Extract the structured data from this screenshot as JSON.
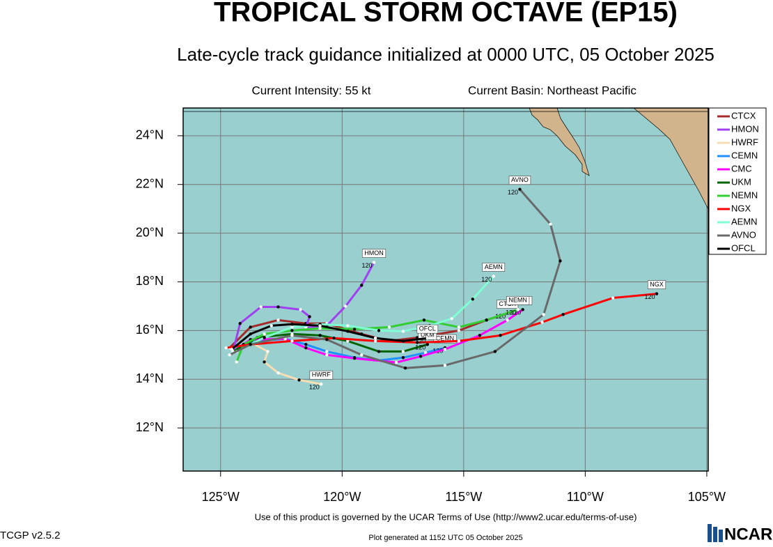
{
  "chart_data": {
    "type": "track-map",
    "title": "TROPICAL STORM OCTAVE (EP15)",
    "subtitle": "Late-cycle track guidance initialized at 0000 UTC, 05 October 2025",
    "intensity": "Current Intensity: 55 kt",
    "basin": "Current Basin: Northeast Pacific",
    "terms": "Use of this product is governed by the UCAR Terms of Use (http://www2.ucar.edu/terms-of-use)",
    "version": "TCGP v2.5.2",
    "generated": "Plot generated at 1152 UTC   05 October 2025",
    "logo": "NCAR",
    "xlim": [
      -126.54,
      -104.94
    ],
    "ylim": [
      10.23,
      25.14
    ],
    "xticks": [
      {
        "value": -125,
        "label": "125°W"
      },
      {
        "value": -120,
        "label": "120°W"
      },
      {
        "value": -115,
        "label": "115°W"
      },
      {
        "value": -110,
        "label": "110°W"
      },
      {
        "value": -105,
        "label": "105°W"
      }
    ],
    "yticks": [
      {
        "value": 12,
        "label": "12°N"
      },
      {
        "value": 14,
        "label": "14°N"
      },
      {
        "value": 16,
        "label": "16°N"
      },
      {
        "value": 18,
        "label": "18°N"
      },
      {
        "value": 20,
        "label": "20°N"
      },
      {
        "value": 22,
        "label": "22°N"
      },
      {
        "value": 24,
        "label": "24°N"
      }
    ],
    "grid": true,
    "legend": "right",
    "series": [
      {
        "name": "CTCX",
        "color": "#a52a2a",
        "end_hour": 120,
        "lon": [
          -124.63,
          -123.77,
          -122.63,
          -121.49,
          -120.63,
          -119.2,
          -118.06,
          -116.91,
          -115.2,
          -114.06,
          -113.2
        ],
        "lat": [
          15.29,
          16.14,
          16.43,
          16.29,
          16.29,
          15.86,
          15.57,
          15.71,
          16.0,
          16.43,
          16.71
        ]
      },
      {
        "name": "HMON",
        "color": "#a040f0",
        "end_hour": 120,
        "lon": [
          -124.49,
          -124.2,
          -123.34,
          -122.63,
          -121.71,
          -121.34,
          -121.49,
          -120.63,
          -119.86,
          -119.2,
          -118.69
        ],
        "lat": [
          15.14,
          16.29,
          16.97,
          16.97,
          16.86,
          16.57,
          16.14,
          16.2,
          17.0,
          17.86,
          18.8
        ]
      },
      {
        "name": "HWRF",
        "color": "#f5deb3",
        "end_hour": 120,
        "lon": [
          -124.49,
          -123.71,
          -123.06,
          -123.2,
          -122.63,
          -121.77,
          -120.86
        ],
        "lat": [
          15.14,
          15.49,
          15.14,
          14.71,
          14.26,
          13.97,
          13.8
        ]
      },
      {
        "name": "CEMN",
        "color": "#1e90ff",
        "end_hour": 120,
        "lon": [
          -124.49,
          -123.49,
          -122.34,
          -121.49,
          -120.63,
          -119.49,
          -118.49,
          -117.49,
          -116.57,
          -115.77
        ],
        "lat": [
          15.14,
          15.57,
          15.66,
          15.43,
          15.14,
          14.89,
          14.77,
          14.89,
          15.09,
          15.29
        ]
      },
      {
        "name": "CMC",
        "color": "#ff00ff",
        "end_hour": 120,
        "lon": [
          -124.49,
          -123.77,
          -122.34,
          -121.49,
          -120.63,
          -119.49,
          -117.77,
          -116.77,
          -115.77,
          -114.34,
          -113.2,
          -112.57
        ],
        "lat": [
          15.14,
          15.63,
          15.66,
          15.29,
          15.0,
          14.86,
          14.69,
          14.94,
          15.23,
          15.8,
          16.43,
          16.86
        ]
      },
      {
        "name": "UKM",
        "color": "#006400",
        "end_hour": 120,
        "lon": [
          -124.49,
          -123.49,
          -122.06,
          -120.91,
          -119.77,
          -118.49,
          -117.49,
          -116.49
        ],
        "lat": [
          15.14,
          15.71,
          15.86,
          15.8,
          15.57,
          15.14,
          15.14,
          15.43
        ]
      },
      {
        "name": "NEMN",
        "color": "#32cd32",
        "end_hour": 120,
        "lon": [
          -124.34,
          -124.06,
          -123.2,
          -122.06,
          -120.91,
          -119.49,
          -118.06,
          -116.63,
          -115.2,
          -114.06,
          -112.77
        ],
        "lat": [
          14.71,
          15.43,
          15.86,
          16.0,
          16.09,
          16.06,
          16.14,
          16.43,
          16.14,
          16.43,
          16.86
        ]
      },
      {
        "name": "NGX",
        "color": "#ff0000",
        "end_hour": 120,
        "lon": [
          -124.77,
          -123.77,
          -122.06,
          -120.34,
          -118.63,
          -116.91,
          -115.2,
          -113.49,
          -111.77,
          -110.91,
          -108.86,
          -107.06
        ],
        "lat": [
          15.29,
          15.43,
          15.57,
          15.69,
          15.57,
          15.51,
          15.57,
          15.8,
          16.34,
          16.66,
          17.34,
          17.51
        ]
      },
      {
        "name": "AEMN",
        "color": "#7fffd4",
        "end_hour": 120,
        "lon": [
          -124.34,
          -123.2,
          -122.06,
          -120.91,
          -119.77,
          -118.49,
          -117.49,
          -116.4,
          -115.49,
          -114.63,
          -113.77
        ],
        "lat": [
          15.14,
          15.71,
          16.14,
          16.26,
          16.2,
          16.0,
          15.97,
          16.2,
          16.49,
          17.29,
          18.23
        ]
      },
      {
        "name": "AVNO",
        "color": "#696969",
        "end_hour": 120,
        "lon": [
          -124.63,
          -123.77,
          -122.06,
          -120.63,
          -119.2,
          -117.4,
          -115.77,
          -113.71,
          -111.71,
          -111.03,
          -111.43,
          -112.69
        ],
        "lat": [
          15.0,
          15.43,
          15.8,
          15.63,
          15.0,
          14.46,
          14.57,
          15.14,
          16.66,
          18.86,
          20.37,
          21.8
        ]
      },
      {
        "name": "OFCL",
        "color": "#000000",
        "end_hour": 120,
        "lon": [
          -124.54,
          -123.77,
          -122.91,
          -122.06,
          -120.91,
          -119.77,
          -118.63,
          -117.49,
          -116.49
        ],
        "lat": [
          15.23,
          15.86,
          16.2,
          16.26,
          16.2,
          15.97,
          15.69,
          15.57,
          15.69
        ]
      }
    ]
  }
}
